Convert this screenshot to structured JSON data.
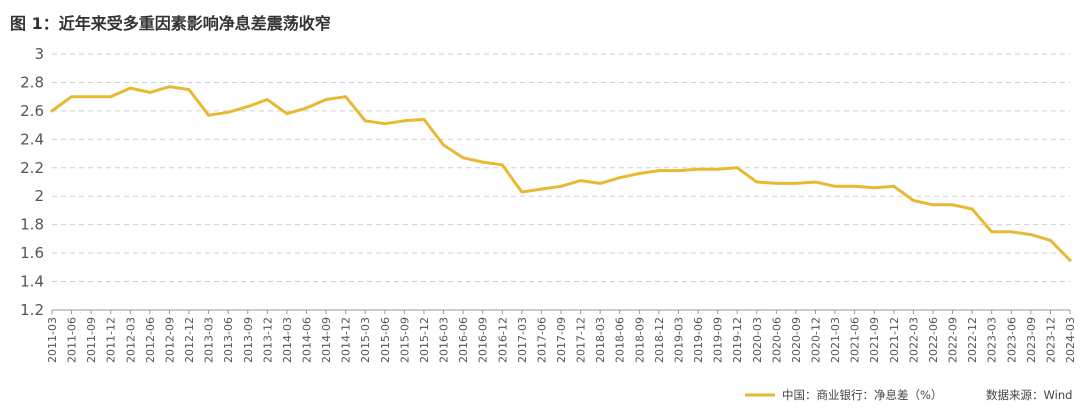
{
  "header": {
    "title": "图 1：近年来受多重因素影响净息差震荡收窄"
  },
  "legend": {
    "series_label": "中国：商业银行：净息差（%）"
  },
  "source": {
    "text": "数据来源：Wind"
  },
  "colors": {
    "line": "#E8B931",
    "grid": "#cfcfcf",
    "axis": "#999999"
  },
  "chart_data": {
    "type": "line",
    "title": "图 1：近年来受多重因素影响净息差震荡收窄",
    "xlabel": "",
    "ylabel": "",
    "ylim": [
      1.2,
      3.0
    ],
    "yticks": [
      1.2,
      1.4,
      1.6,
      1.8,
      2,
      2.2,
      2.4,
      2.6,
      2.8,
      3
    ],
    "grid": "horizontal-dashed",
    "legend_position": "bottom-right",
    "categories": [
      "2011-03",
      "2011-06",
      "2011-09",
      "2011-12",
      "2012-03",
      "2012-06",
      "2012-09",
      "2012-12",
      "2013-03",
      "2013-06",
      "2013-09",
      "2013-12",
      "2014-03",
      "2014-06",
      "2014-09",
      "2014-12",
      "2015-03",
      "2015-06",
      "2015-09",
      "2015-12",
      "2016-03",
      "2016-06",
      "2016-09",
      "2016-12",
      "2017-03",
      "2017-06",
      "2017-09",
      "2017-12",
      "2018-03",
      "2018-06",
      "2018-09",
      "2018-12",
      "2019-03",
      "2019-06",
      "2019-09",
      "2019-12",
      "2020-03",
      "2020-06",
      "2020-09",
      "2020-12",
      "2021-03",
      "2021-06",
      "2021-09",
      "2021-12",
      "2022-03",
      "2022-06",
      "2022-09",
      "2022-12",
      "2023-03",
      "2023-06",
      "2023-09",
      "2023-12",
      "2024-03"
    ],
    "series": [
      {
        "name": "中国：商业银行：净息差（%）",
        "values": [
          2.6,
          2.7,
          2.7,
          2.7,
          2.76,
          2.73,
          2.77,
          2.75,
          2.57,
          2.59,
          2.63,
          2.68,
          2.58,
          2.62,
          2.68,
          2.7,
          2.53,
          2.51,
          2.53,
          2.54,
          2.36,
          2.27,
          2.24,
          2.22,
          2.03,
          2.05,
          2.07,
          2.11,
          2.09,
          2.13,
          2.16,
          2.18,
          2.18,
          2.19,
          2.19,
          2.2,
          2.1,
          2.09,
          2.09,
          2.1,
          2.07,
          2.07,
          2.06,
          2.07,
          1.97,
          1.94,
          1.94,
          1.91,
          1.75,
          1.75,
          1.73,
          1.69,
          1.55
        ]
      }
    ]
  }
}
